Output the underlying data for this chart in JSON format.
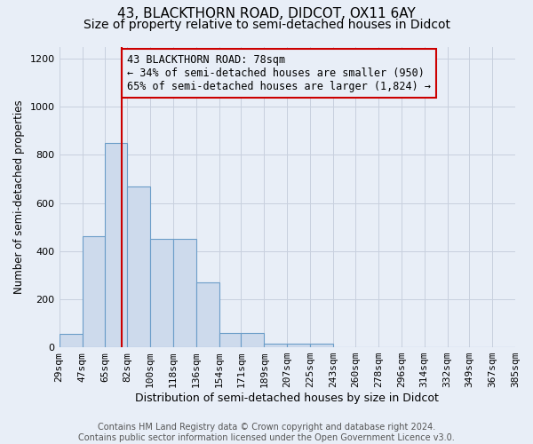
{
  "title1": "43, BLACKTHORN ROAD, DIDCOT, OX11 6AY",
  "title2": "Size of property relative to semi-detached houses in Didcot",
  "xlabel": "Distribution of semi-detached houses by size in Didcot",
  "ylabel": "Number of semi-detached properties",
  "footer1": "Contains HM Land Registry data © Crown copyright and database right 2024.",
  "footer2": "Contains public sector information licensed under the Open Government Licence v3.0.",
  "annotation_line1": "43 BLACKTHORN ROAD: 78sqm",
  "annotation_line2": "← 34% of semi-detached houses are smaller (950)",
  "annotation_line3": "65% of semi-detached houses are larger (1,824) →",
  "property_size": 78,
  "bin_edges": [
    29,
    47,
    65,
    82,
    100,
    118,
    136,
    154,
    171,
    189,
    207,
    225,
    243,
    260,
    278,
    296,
    314,
    332,
    349,
    367,
    385
  ],
  "bin_heights": [
    55,
    460,
    850,
    670,
    450,
    450,
    270,
    60,
    60,
    15,
    15,
    15,
    0,
    0,
    0,
    0,
    0,
    0,
    0,
    0
  ],
  "bar_color": "#cddaec",
  "bar_edge_color": "#6b9dc8",
  "red_line_color": "#cc0000",
  "annotation_box_color": "#cc0000",
  "bg_color": "#e8eef7",
  "grid_color": "#c8d0de",
  "ylim": [
    0,
    1250
  ],
  "yticks": [
    0,
    200,
    400,
    600,
    800,
    1000,
    1200
  ],
  "title1_fontsize": 11,
  "title2_fontsize": 10,
  "xlabel_fontsize": 9,
  "ylabel_fontsize": 8.5,
  "tick_fontsize": 8,
  "annotation_fontsize": 8.5,
  "footer_fontsize": 7
}
